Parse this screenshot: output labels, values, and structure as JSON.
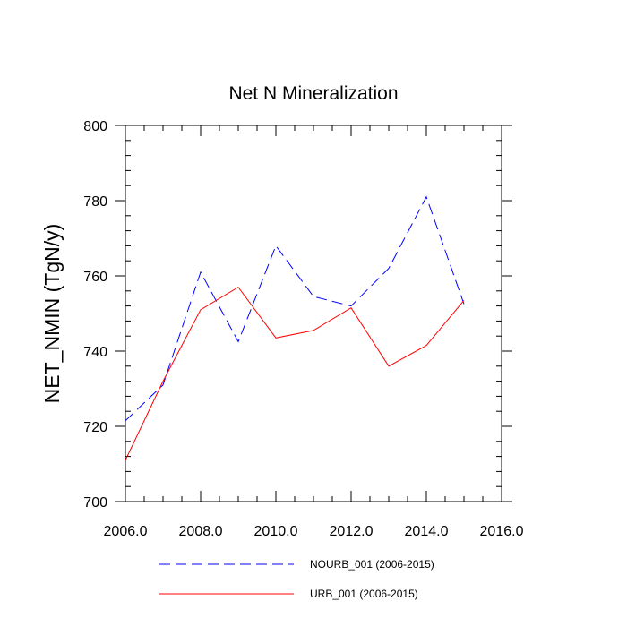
{
  "chart_data": {
    "type": "line",
    "title": "Net N Mineralization",
    "xlabel": "",
    "ylabel": "NET_NMIN  (TgN/y)",
    "xlim": [
      2006,
      2016
    ],
    "ylim": [
      700,
      800
    ],
    "x_ticks": [
      {
        "value": 2006,
        "label": "2006.0"
      },
      {
        "value": 2008,
        "label": "2008.0"
      },
      {
        "value": 2010,
        "label": "2010.0"
      },
      {
        "value": 2012,
        "label": "2012.0"
      },
      {
        "value": 2014,
        "label": "2014.0"
      },
      {
        "value": 2016,
        "label": "2016.0"
      }
    ],
    "y_ticks": [
      {
        "value": 700,
        "label": "700"
      },
      {
        "value": 720,
        "label": "720"
      },
      {
        "value": 740,
        "label": "740"
      },
      {
        "value": 760,
        "label": "760"
      },
      {
        "value": 780,
        "label": "780"
      },
      {
        "value": 800,
        "label": "800"
      }
    ],
    "grid": false,
    "legend_position": "bottom",
    "x": [
      2006,
      2007,
      2008,
      2009,
      2010,
      2011,
      2012,
      2013,
      2014,
      2015
    ],
    "series": [
      {
        "name": "NOURB_001 (2006-2015)",
        "color": "#0000ff",
        "line_style": "dashed",
        "values": [
          721.5,
          731.0,
          761.0,
          742.5,
          768.0,
          754.5,
          752.0,
          762.0,
          781.0,
          752.5
        ]
      },
      {
        "name": "URB_001 (2006-2015)",
        "color": "#ff0000",
        "line_style": "solid",
        "values": [
          711.0,
          732.0,
          751.0,
          757.0,
          743.5,
          745.5,
          751.5,
          736.0,
          741.5,
          753.5
        ]
      }
    ]
  }
}
